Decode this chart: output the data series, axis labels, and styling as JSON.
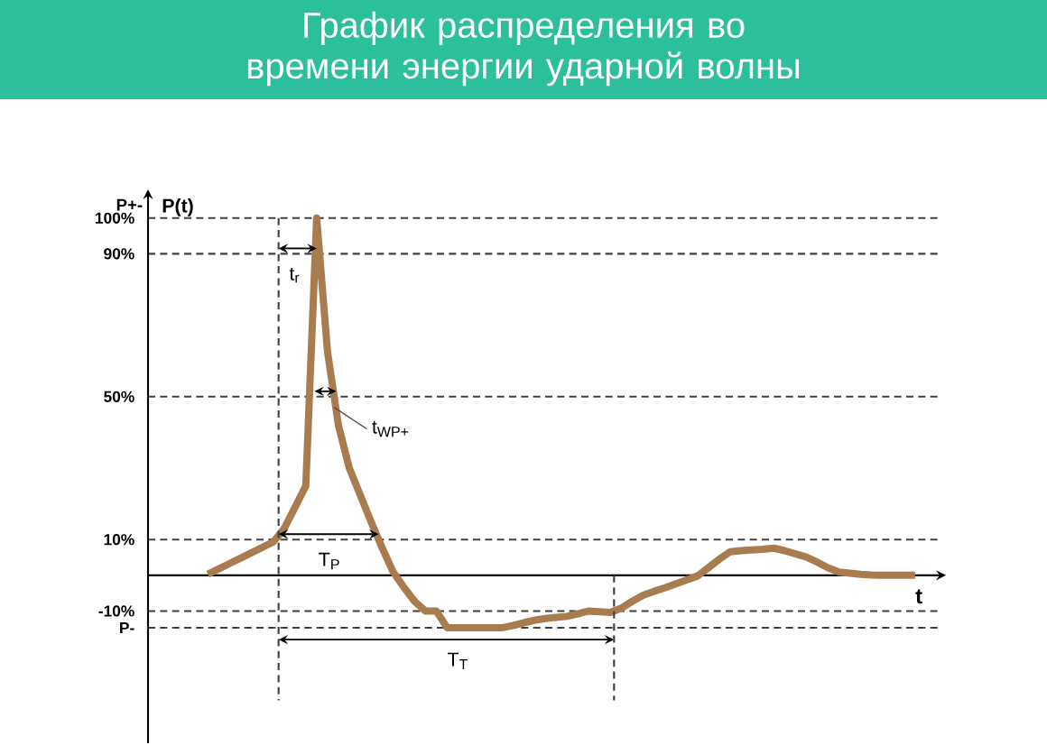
{
  "chart_data": {
    "type": "line",
    "title": "График распределения во времени энергии ударной волны",
    "ylabel": "P+-",
    "xlabel": "t",
    "categories": [
      null,
      null,
      null,
      null,
      null,
      null,
      null,
      null,
      null,
      null,
      null,
      null,
      null,
      null,
      null,
      null,
      null,
      null,
      null,
      null,
      null,
      null,
      null,
      null,
      null,
      null,
      null,
      null,
      null,
      null,
      null,
      null,
      null,
      null,
      null,
      null,
      null,
      null,
      null,
      null,
      null,
      null,
      null,
      null,
      null,
      null,
      null,
      null,
      null,
      null,
      null,
      null,
      null,
      null,
      null,
      null,
      null,
      null,
      null,
      null,
      null,
      null,
      null,
      null,
      null,
      null
    ],
    "series": [
      {
        "color": "#a97c50",
        "values": [
          0.3,
          1.8,
          3.3,
          4.8,
          6.3,
          7.8,
          9.3,
          13,
          19,
          25,
          100,
          62.5,
          42,
          30,
          22.5,
          15,
          7.8,
          1.1,
          -3.3,
          -7.3,
          -10,
          -10,
          -14.7,
          -14.7,
          -14.7,
          -14.7,
          -14.7,
          -14.7,
          -14.1,
          -13.3,
          -12.6,
          -12.1,
          -11.8,
          -11.5,
          -10.8,
          -10,
          -10.2,
          -10.4,
          -9.2,
          -7.3,
          -5.6,
          -4.5,
          -3.5,
          -2.4,
          -1.3,
          -0.2,
          2.1,
          4.5,
          6.6,
          6.9,
          7.1,
          7.3,
          7.6,
          6.9,
          6,
          5.1,
          3.7,
          2.1,
          0.9,
          0.6,
          0.3,
          0.1,
          0,
          0,
          0,
          0
        ]
      }
    ],
    "ylim": [
      -47,
      106
    ],
    "yticks": [
      {
        "value": 100,
        "label": "100%"
      },
      {
        "value": 90,
        "label": "90%"
      },
      {
        "value": 50,
        "label": "50%"
      },
      {
        "value": 10,
        "label": "10%"
      },
      {
        "value": -10,
        "label": "-10%"
      },
      {
        "value": -14.7,
        "label": "P-"
      }
    ],
    "tick_labels": "y",
    "grid": "y",
    "marker": "none",
    "line_style": "solid",
    "annotations": [
      "P(t)",
      "t$_{r}$",
      "t$_{WP+}$",
      "T$_{P}$",
      "T$_{T}$"
    ]
  }
}
